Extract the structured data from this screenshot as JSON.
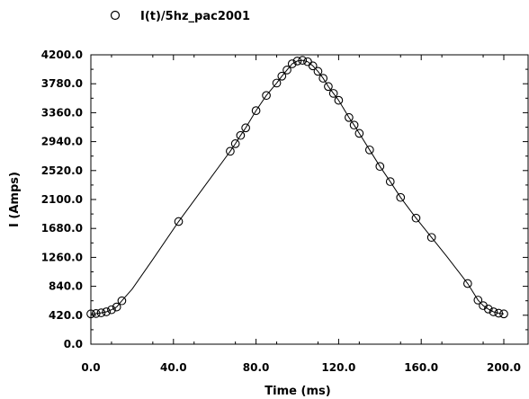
{
  "chart_data": {
    "type": "line",
    "title": "",
    "xlabel": "Time (ms)",
    "ylabel": "I (Amps)",
    "xlim": [
      0,
      200
    ],
    "ylim": [
      0,
      4200
    ],
    "x_ticks": [
      "0.0",
      "40.0",
      "80.0",
      "120.0",
      "160.0",
      "200.0"
    ],
    "y_ticks": [
      "0.0",
      "420.0",
      "840.0",
      "1260.0",
      "1680.0",
      "2100.0",
      "2520.0",
      "2940.0",
      "3360.0",
      "3780.0",
      "4200.0"
    ],
    "grid": false,
    "legend_position": "top-left",
    "series": [
      {
        "name": "I(t)/5hz_pac2001",
        "marker": "open-circle",
        "line_color": "#000000",
        "x": [
          0,
          2.5,
          5,
          7.5,
          10,
          12.5,
          15,
          20,
          30,
          42.5,
          55,
          67.5,
          70,
          72.5,
          75,
          80,
          85,
          90,
          92.5,
          95,
          97.5,
          100,
          102.5,
          105,
          107.5,
          110,
          112.5,
          115,
          117.5,
          120,
          125,
          127.5,
          130,
          135,
          140,
          145,
          150,
          157.5,
          165,
          172.5,
          182.5,
          187.5,
          190,
          192.5,
          195,
          197.5,
          200
        ],
        "y": [
          440,
          445,
          455,
          470,
          500,
          540,
          630,
          800,
          1230,
          1780,
          2290,
          2800,
          2910,
          3030,
          3140,
          3390,
          3610,
          3790,
          3890,
          3980,
          4070,
          4110,
          4120,
          4100,
          4040,
          3960,
          3860,
          3740,
          3640,
          3540,
          3290,
          3180,
          3060,
          2820,
          2580,
          2360,
          2130,
          1830,
          1550,
          1270,
          880,
          640,
          560,
          510,
          470,
          450,
          440
        ],
        "marker_x": [
          0,
          2.5,
          5,
          7.5,
          10,
          12.5,
          15,
          42.5,
          67.5,
          70,
          72.5,
          75,
          80,
          85,
          90,
          92.5,
          95,
          97.5,
          100,
          102.5,
          105,
          107.5,
          110,
          112.5,
          115,
          117.5,
          120,
          125,
          127.5,
          130,
          135,
          140,
          145,
          150,
          157.5,
          165,
          182.5,
          187.5,
          190,
          192.5,
          195,
          197.5,
          200
        ],
        "marker_y": [
          440,
          445,
          455,
          470,
          500,
          540,
          630,
          1780,
          2800,
          2910,
          3030,
          3140,
          3390,
          3610,
          3790,
          3890,
          3980,
          4070,
          4110,
          4120,
          4100,
          4040,
          3960,
          3860,
          3740,
          3640,
          3540,
          3290,
          3180,
          3060,
          2820,
          2580,
          2360,
          2130,
          1830,
          1550,
          880,
          640,
          560,
          510,
          470,
          450,
          440
        ]
      }
    ]
  }
}
